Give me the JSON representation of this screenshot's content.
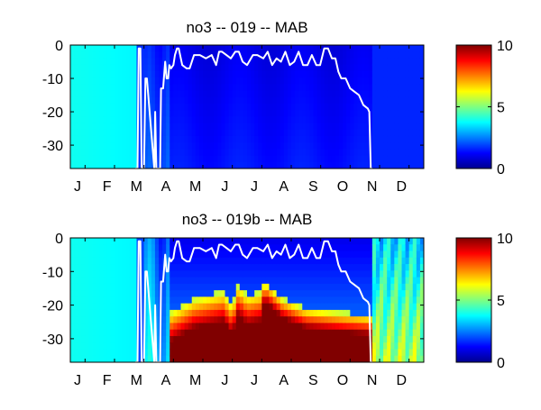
{
  "chart_data": [
    {
      "type": "heatmap",
      "title": "no3 -- 019 -- MAB",
      "x_tick_labels": [
        "J",
        "F",
        "M",
        "A",
        "M",
        "J",
        "J",
        "A",
        "S",
        "O",
        "N",
        "D"
      ],
      "y_ticks": [
        0,
        -10,
        -20,
        -30
      ],
      "y_tick_labels": [
        "0",
        "-10",
        "-20",
        "-30"
      ],
      "ylim": [
        -37,
        0
      ],
      "xlim": [
        0,
        12
      ],
      "colorbar": {
        "ticks": [
          0,
          5,
          10
        ],
        "tick_labels": [
          "0",
          "5",
          "10"
        ],
        "range": [
          0,
          10
        ],
        "colormap": "jet"
      },
      "overlay_line_color": "#ffffff",
      "overlay_depth_line": {
        "x": [
          2.2,
          2.28,
          2.32,
          2.38,
          2.42,
          2.5,
          2.55,
          2.6,
          2.85,
          2.88,
          2.92,
          3.05,
          3.08,
          3.15,
          3.22,
          3.27,
          3.32,
          3.36,
          3.42,
          3.5,
          3.55,
          3.62,
          3.68,
          3.8,
          3.95,
          4.05,
          4.2,
          4.4,
          4.6,
          4.8,
          4.95,
          5.05,
          5.15,
          5.3,
          5.45,
          5.6,
          5.72,
          5.85,
          6.0,
          6.2,
          6.35,
          6.55,
          6.7,
          6.85,
          7.0,
          7.15,
          7.3,
          7.45,
          7.6,
          7.75,
          7.9,
          8.05,
          8.2,
          8.35,
          8.48,
          8.62,
          8.75,
          8.88,
          9.0,
          9.1,
          9.2,
          9.35,
          9.5,
          9.65,
          9.8,
          9.95,
          10.1,
          10.15,
          10.2,
          10.25
        ],
        "y": [
          -37,
          -37,
          -1,
          -1,
          -37,
          -37,
          -10,
          -10,
          -37,
          -20,
          -37,
          -37,
          -13,
          -13,
          -5,
          -10,
          -10,
          -6,
          -7,
          -6,
          -3,
          -1,
          -1,
          -6,
          -7,
          -7,
          -3,
          -3,
          -4,
          -3,
          -6,
          -2,
          -2,
          -3,
          -4,
          -2,
          -2,
          -5,
          -6,
          -3,
          -3,
          -4,
          -2,
          -6,
          -4,
          -5,
          -2,
          -6,
          -5,
          -2,
          -6,
          -6,
          -3,
          -6,
          -6,
          -1,
          -1,
          -4,
          -4,
          -8,
          -10,
          -10,
          -13,
          -14,
          -15,
          -18,
          -19,
          -20,
          -37,
          -37
        ]
      }
    },
    {
      "type": "heatmap",
      "title": "no3 -- 019b -- MAB",
      "x_tick_labels": [
        "J",
        "F",
        "M",
        "A",
        "M",
        "J",
        "J",
        "A",
        "S",
        "O",
        "N",
        "D"
      ],
      "y_ticks": [
        0,
        -10,
        -20,
        -30
      ],
      "y_tick_labels": [
        "0",
        "-10",
        "-20",
        "-30"
      ],
      "ylim": [
        -37,
        0
      ],
      "xlim": [
        0,
        12
      ],
      "colorbar": {
        "ticks": [
          0,
          5,
          10
        ],
        "tick_labels": [
          "0",
          "5",
          "10"
        ],
        "range": [
          0,
          10
        ],
        "colormap": "jet"
      },
      "overlay_line_color": "#ffffff",
      "overlay_depth_line": {
        "x": [
          2.2,
          2.28,
          2.32,
          2.38,
          2.42,
          2.5,
          2.55,
          2.6,
          2.85,
          2.88,
          2.92,
          3.05,
          3.08,
          3.15,
          3.22,
          3.27,
          3.32,
          3.36,
          3.42,
          3.5,
          3.55,
          3.62,
          3.68,
          3.8,
          3.95,
          4.05,
          4.2,
          4.4,
          4.6,
          4.8,
          4.95,
          5.05,
          5.15,
          5.3,
          5.45,
          5.6,
          5.72,
          5.85,
          6.0,
          6.2,
          6.35,
          6.55,
          6.7,
          6.85,
          7.0,
          7.15,
          7.3,
          7.45,
          7.6,
          7.75,
          7.9,
          8.05,
          8.2,
          8.35,
          8.48,
          8.62,
          8.75,
          8.88,
          9.0,
          9.1,
          9.2,
          9.35,
          9.5,
          9.65,
          9.8,
          9.95,
          10.1,
          10.15,
          10.2,
          10.25
        ],
        "y": [
          -37,
          -37,
          -1,
          -1,
          -37,
          -37,
          -10,
          -10,
          -37,
          -20,
          -37,
          -37,
          -13,
          -13,
          -5,
          -10,
          -10,
          -6,
          -7,
          -6,
          -3,
          -1,
          -1,
          -6,
          -7,
          -7,
          -3,
          -3,
          -4,
          -3,
          -6,
          -2,
          -2,
          -3,
          -4,
          -2,
          -2,
          -5,
          -6,
          -3,
          -3,
          -4,
          -2,
          -6,
          -4,
          -5,
          -2,
          -6,
          -5,
          -2,
          -6,
          -6,
          -3,
          -6,
          -6,
          -1,
          -1,
          -4,
          -4,
          -8,
          -10,
          -10,
          -13,
          -14,
          -15,
          -18,
          -19,
          -20,
          -37,
          -37
        ]
      }
    }
  ]
}
